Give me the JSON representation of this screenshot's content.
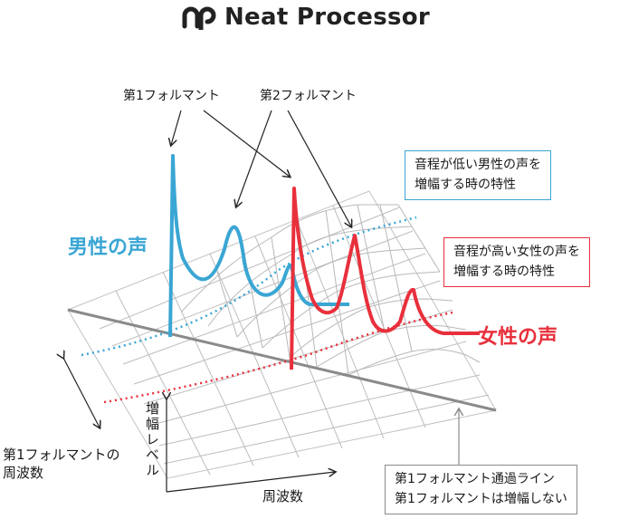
{
  "header": {
    "brand": "Neat Processor"
  },
  "annotations": {
    "formant1": "第1フォルマント",
    "formant2": "第2フォルマント",
    "male_voice": "男性の声",
    "female_voice": "女性の声",
    "male_box": [
      "音程が低い男性の声を",
      "増幅する時の特性"
    ],
    "female_box": [
      "音程が高い女性の声を",
      "増幅する時の特性"
    ],
    "gray_box": [
      "第1フォルマント通過ライン",
      "第1フォルマントは増幅しない"
    ],
    "axis_amplification": "増幅レベル",
    "axis_frequency": "周波数",
    "axis_formant_freq": [
      "第1フォルマントの",
      "周波数"
    ]
  },
  "colors": {
    "male": "#3aa6d4",
    "female": "#e8303c",
    "grid": "#b5b5b5",
    "pass_line": "#8a8a8a"
  }
}
